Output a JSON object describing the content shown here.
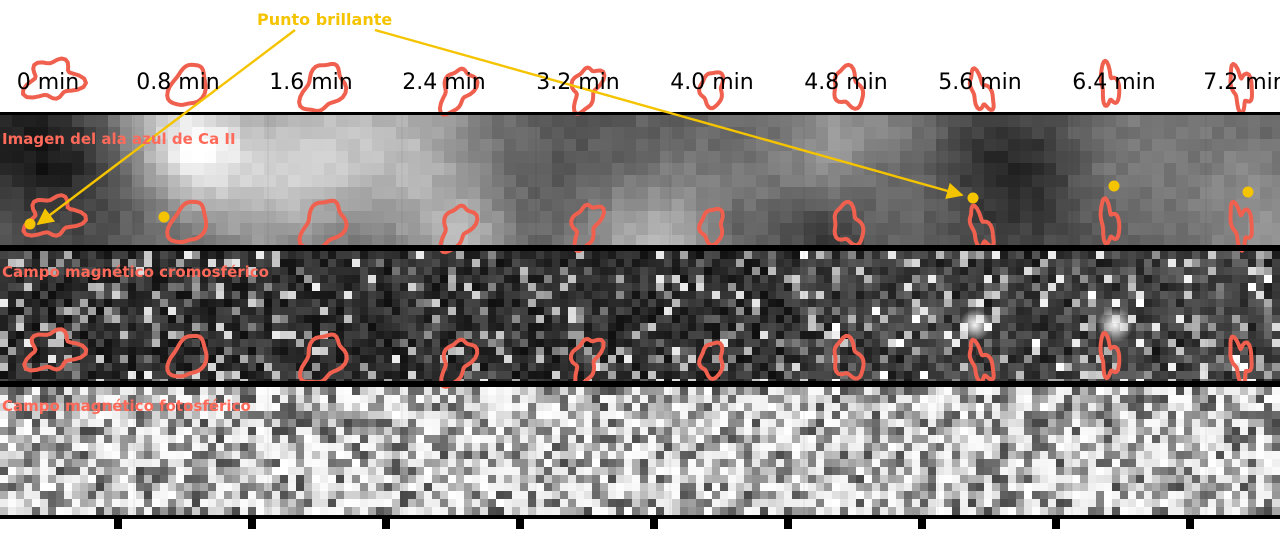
{
  "annotation": {
    "label": "Punto brillante",
    "color": "#f5c400"
  },
  "timestamps": [
    "0 min",
    "0.8 min",
    "1.6 min",
    "2.4 min",
    "3.2 min",
    "4.0 min",
    "4.8 min",
    "5.6 min",
    "6.4 min",
    "7.2 min"
  ],
  "rows": [
    {
      "title": "Imagen del ala azul de Ca II"
    },
    {
      "title": "Campo magnético cromosférico"
    },
    {
      "title": "Campo magnético fotosférico"
    }
  ],
  "colors": {
    "contour": "#f0604f",
    "title": "#ff6a5a",
    "marker": "#f5c400"
  }
}
